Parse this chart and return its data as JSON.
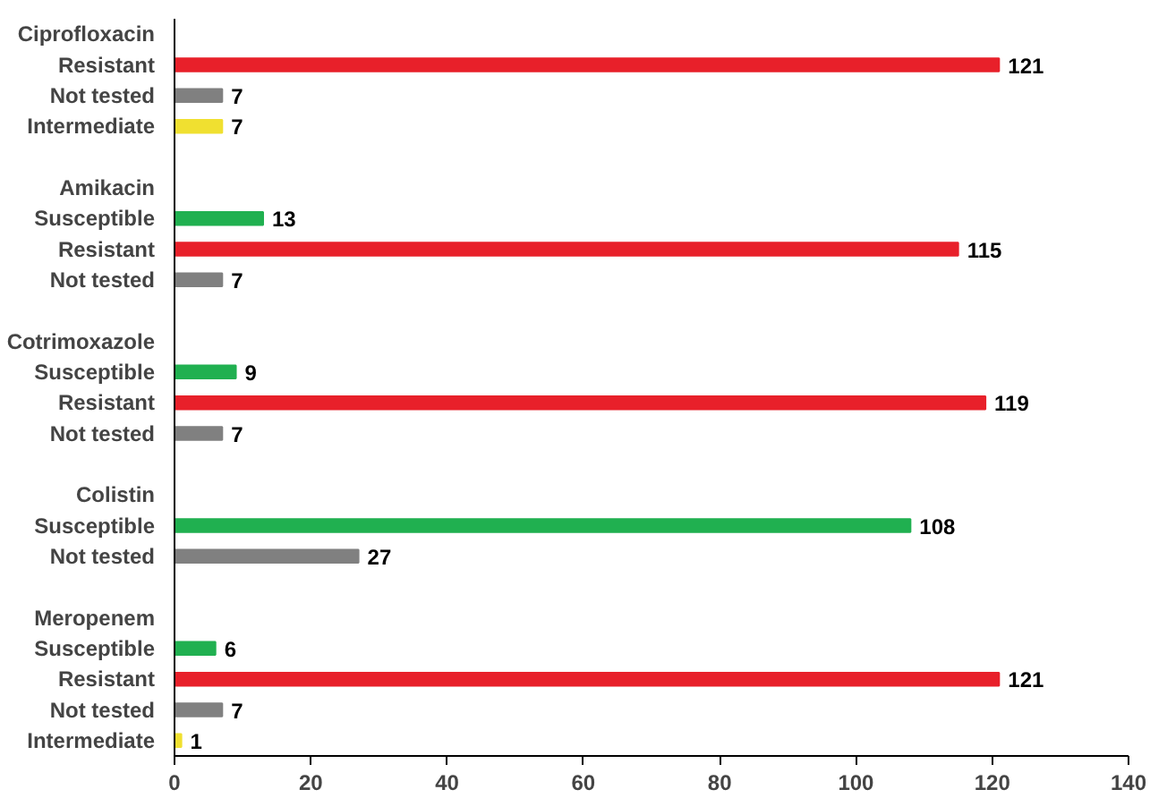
{
  "chart_data": {
    "type": "bar",
    "orientation": "horizontal",
    "categories": [
      "Ciprofloxacin",
      "Resistant",
      "Not tested",
      "Intermediate",
      null,
      "Amikacin",
      "Susceptible",
      "Resistant",
      "Not tested",
      null,
      "Cotrimoxazole",
      "Susceptible",
      "Resistant",
      "Not tested",
      null,
      "Colistin",
      "Susceptible",
      "Not tested",
      null,
      "Meropenem",
      "Susceptible",
      "Resistant",
      "Not tested",
      "Intermediate"
    ],
    "values": [
      null,
      121,
      7,
      7,
      null,
      null,
      13,
      115,
      7,
      null,
      null,
      9,
      119,
      7,
      null,
      null,
      108,
      27,
      null,
      null,
      6,
      121,
      7,
      1
    ],
    "colors": [
      "#808080",
      "#e8202a",
      "#808080",
      "#f0e030",
      "#808080",
      "#808080",
      "#20b050",
      "#e8202a",
      "#808080",
      "#808080",
      "#808080",
      "#20b050",
      "#e8202a",
      "#808080",
      "#808080",
      "#808080",
      "#20b050",
      "#808080",
      "#808080",
      "#808080",
      "#20b050",
      "#e8202a",
      "#808080",
      "#f0e030"
    ],
    "xlim": [
      0,
      140
    ],
    "xticks": [
      0,
      20,
      40,
      60,
      80,
      100,
      120,
      140
    ],
    "data_labels": true,
    "grid": false
  }
}
